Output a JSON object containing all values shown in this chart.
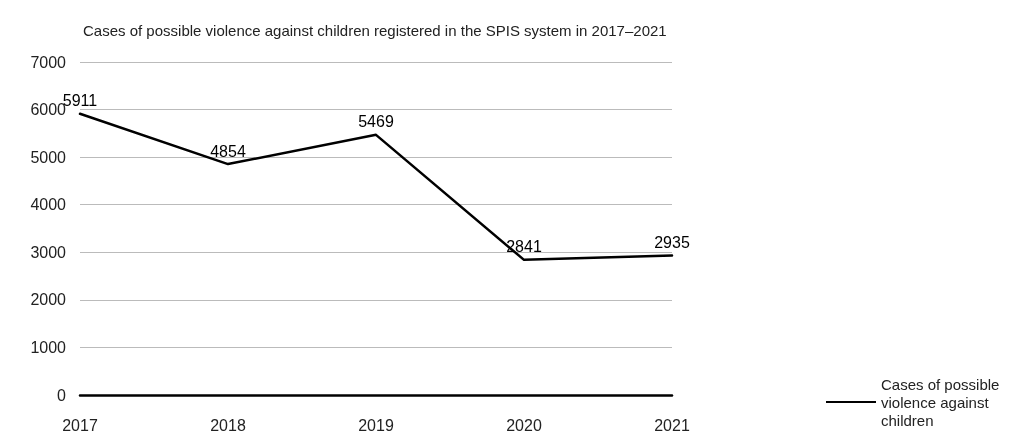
{
  "chart_data": {
    "type": "line",
    "title": "Cases of possible violence against children registered in the SPIS system in 2017–2021",
    "categories": [
      "2017",
      "2018",
      "2019",
      "2020",
      "2021"
    ],
    "series": [
      {
        "name": "Cases of possible violence against children",
        "color": "#000000",
        "values": [
          5911,
          4854,
          5469,
          2841,
          2935
        ]
      }
    ],
    "ylim": [
      0,
      7000
    ],
    "yticks": [
      0,
      1000,
      2000,
      3000,
      4000,
      5000,
      6000,
      7000
    ],
    "grid": "y",
    "legend": "right",
    "data_labels": true,
    "marker": "none",
    "line_style": "solid"
  }
}
